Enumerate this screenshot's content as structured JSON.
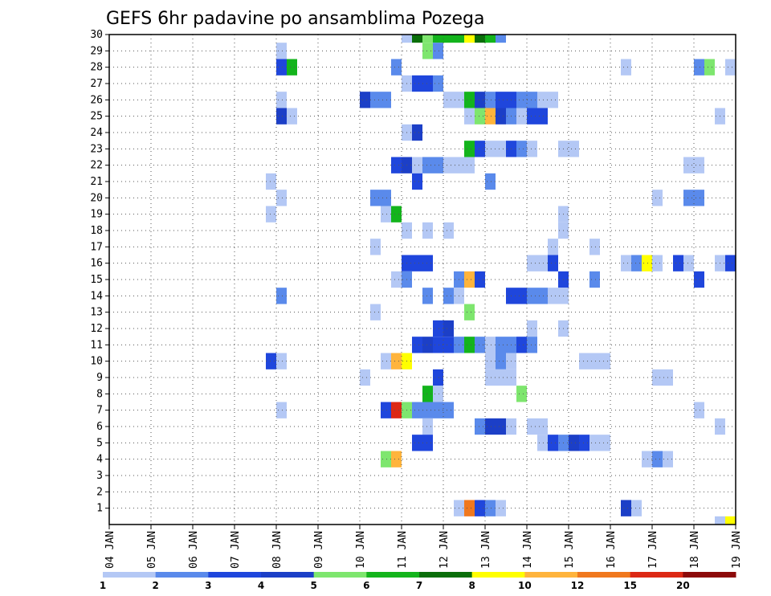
{
  "chart_data": {
    "type": "heatmap",
    "title": "GEFS 6hr padavine po ansamblima Pozega",
    "x_ticks": [
      "04 JAN",
      "05 JAN",
      "06 JAN",
      "07 JAN",
      "08 JAN",
      "09 JAN",
      "10 JAN",
      "11 JAN",
      "12 JAN",
      "13 JAN",
      "14 JAN",
      "15 JAN",
      "16 JAN",
      "17 JAN",
      "18 JAN",
      "19 JAN"
    ],
    "y_ticks": [
      "1",
      "2",
      "3",
      "4",
      "5",
      "6",
      "7",
      "8",
      "9",
      "10",
      "11",
      "12",
      "13",
      "14",
      "15",
      "16",
      "17",
      "18",
      "19",
      "20",
      "21",
      "22",
      "23",
      "24",
      "25",
      "26",
      "27",
      "28",
      "29",
      "30"
    ],
    "xlim": [
      "04 JAN 00Z",
      "19 JAN 00Z"
    ],
    "ylim": [
      0,
      30
    ],
    "grid": true,
    "colorbar": {
      "levels": [
        1,
        2,
        3,
        4,
        5,
        6,
        7,
        8,
        10,
        12,
        15,
        20
      ],
      "labels": [
        "1",
        "2",
        "3",
        "4",
        "5",
        "6",
        "7",
        "8",
        "10",
        "12",
        "15",
        "20"
      ],
      "colors": [
        "#b4c8f5",
        "#5a8aeb",
        "#1f46dc",
        "#1c3fc7",
        "#7ee66e",
        "#13b41c",
        "#0a6e0a",
        "#ffff00",
        "#ffb43c",
        "#f0781e",
        "#dc2814",
        "#8c0a0a"
      ]
    },
    "cells": [
      {
        "member": 30,
        "day": 11.0,
        "level": 1
      },
      {
        "member": 30,
        "day": 11.25,
        "level": 7
      },
      {
        "member": 30,
        "day": 11.5,
        "level": 5
      },
      {
        "member": 30,
        "day": 11.75,
        "level": 6
      },
      {
        "member": 30,
        "day": 12.0,
        "level": 6
      },
      {
        "member": 30,
        "day": 12.25,
        "level": 6
      },
      {
        "member": 30,
        "day": 12.5,
        "level": 8
      },
      {
        "member": 30,
        "day": 12.75,
        "level": 7
      },
      {
        "member": 30,
        "day": 13.0,
        "level": 6
      },
      {
        "member": 30,
        "day": 13.25,
        "level": 2
      },
      {
        "member": 29,
        "day": 8.0,
        "level": 1
      },
      {
        "member": 29,
        "day": 11.5,
        "level": 5
      },
      {
        "member": 29,
        "day": 11.75,
        "level": 2
      },
      {
        "member": 28,
        "day": 8.0,
        "level": 3
      },
      {
        "member": 28,
        "day": 8.25,
        "level": 6
      },
      {
        "member": 28,
        "day": 10.75,
        "level": 2
      },
      {
        "member": 28,
        "day": 16.25,
        "level": 1
      },
      {
        "member": 28,
        "day": 18.0,
        "level": 2
      },
      {
        "member": 28,
        "day": 18.25,
        "level": 5
      },
      {
        "member": 28,
        "day": 18.75,
        "level": 1
      },
      {
        "member": 27,
        "day": 11.0,
        "level": 1
      },
      {
        "member": 27,
        "day": 11.25,
        "level": 3
      },
      {
        "member": 27,
        "day": 11.5,
        "level": 3
      },
      {
        "member": 27,
        "day": 11.75,
        "level": 2
      },
      {
        "member": 26,
        "day": 8.0,
        "level": 1
      },
      {
        "member": 26,
        "day": 10.0,
        "level": 4
      },
      {
        "member": 26,
        "day": 10.25,
        "level": 2
      },
      {
        "member": 26,
        "day": 10.5,
        "level": 2
      },
      {
        "member": 26,
        "day": 12.0,
        "level": 1
      },
      {
        "member": 26,
        "day": 12.25,
        "level": 1
      },
      {
        "member": 26,
        "day": 12.5,
        "level": 6
      },
      {
        "member": 26,
        "day": 12.75,
        "level": 4
      },
      {
        "member": 26,
        "day": 13.0,
        "level": 2
      },
      {
        "member": 26,
        "day": 13.25,
        "level": 3
      },
      {
        "member": 26,
        "day": 13.5,
        "level": 3
      },
      {
        "member": 26,
        "day": 13.75,
        "level": 2
      },
      {
        "member": 26,
        "day": 14.0,
        "level": 2
      },
      {
        "member": 26,
        "day": 14.25,
        "level": 1
      },
      {
        "member": 26,
        "day": 14.5,
        "level": 1
      },
      {
        "member": 25,
        "day": 8.0,
        "level": 4
      },
      {
        "member": 25,
        "day": 8.25,
        "level": 1
      },
      {
        "member": 25,
        "day": 12.5,
        "level": 1
      },
      {
        "member": 25,
        "day": 12.75,
        "level": 5
      },
      {
        "member": 25,
        "day": 13.0,
        "level": 9
      },
      {
        "member": 25,
        "day": 13.25,
        "level": 4
      },
      {
        "member": 25,
        "day": 13.5,
        "level": 2
      },
      {
        "member": 25,
        "day": 13.75,
        "level": 1
      },
      {
        "member": 25,
        "day": 14.0,
        "level": 3
      },
      {
        "member": 25,
        "day": 14.25,
        "level": 3
      },
      {
        "member": 25,
        "day": 18.5,
        "level": 1
      },
      {
        "member": 24,
        "day": 11.0,
        "level": 1
      },
      {
        "member": 24,
        "day": 11.25,
        "level": 4
      },
      {
        "member": 23,
        "day": 12.5,
        "level": 6
      },
      {
        "member": 23,
        "day": 12.75,
        "level": 3
      },
      {
        "member": 23,
        "day": 13.0,
        "level": 1
      },
      {
        "member": 23,
        "day": 13.25,
        "level": 1
      },
      {
        "member": 23,
        "day": 13.5,
        "level": 3
      },
      {
        "member": 23,
        "day": 13.75,
        "level": 2
      },
      {
        "member": 23,
        "day": 14.0,
        "level": 1
      },
      {
        "member": 23,
        "day": 14.75,
        "level": 1
      },
      {
        "member": 23,
        "day": 15.0,
        "level": 1
      },
      {
        "member": 22,
        "day": 10.75,
        "level": 3
      },
      {
        "member": 22,
        "day": 11.0,
        "level": 4
      },
      {
        "member": 22,
        "day": 11.25,
        "level": 1
      },
      {
        "member": 22,
        "day": 11.5,
        "level": 2
      },
      {
        "member": 22,
        "day": 11.75,
        "level": 2
      },
      {
        "member": 22,
        "day": 12.0,
        "level": 1
      },
      {
        "member": 22,
        "day": 12.25,
        "level": 1
      },
      {
        "member": 22,
        "day": 12.5,
        "level": 1
      },
      {
        "member": 22,
        "day": 17.75,
        "level": 1
      },
      {
        "member": 22,
        "day": 18.0,
        "level": 1
      },
      {
        "member": 21,
        "day": 7.75,
        "level": 1
      },
      {
        "member": 21,
        "day": 11.25,
        "level": 3
      },
      {
        "member": 21,
        "day": 13.0,
        "level": 2
      },
      {
        "member": 20,
        "day": 8.0,
        "level": 1
      },
      {
        "member": 20,
        "day": 10.25,
        "level": 2
      },
      {
        "member": 20,
        "day": 10.5,
        "level": 2
      },
      {
        "member": 20,
        "day": 17.0,
        "level": 1
      },
      {
        "member": 20,
        "day": 17.75,
        "level": 2
      },
      {
        "member": 20,
        "day": 18.0,
        "level": 2
      },
      {
        "member": 19,
        "day": 7.75,
        "level": 1
      },
      {
        "member": 19,
        "day": 10.5,
        "level": 1
      },
      {
        "member": 19,
        "day": 10.75,
        "level": 6
      },
      {
        "member": 19,
        "day": 14.75,
        "level": 1
      },
      {
        "member": 18,
        "day": 11.0,
        "level": 1
      },
      {
        "member": 18,
        "day": 11.5,
        "level": 1
      },
      {
        "member": 18,
        "day": 12.0,
        "level": 1
      },
      {
        "member": 18,
        "day": 14.75,
        "level": 1
      },
      {
        "member": 17,
        "day": 10.25,
        "level": 1
      },
      {
        "member": 17,
        "day": 14.5,
        "level": 1
      },
      {
        "member": 17,
        "day": 15.5,
        "level": 1
      },
      {
        "member": 16,
        "day": 11.0,
        "level": 3
      },
      {
        "member": 16,
        "day": 11.25,
        "level": 3
      },
      {
        "member": 16,
        "day": 11.5,
        "level": 3
      },
      {
        "member": 16,
        "day": 14.0,
        "level": 1
      },
      {
        "member": 16,
        "day": 14.25,
        "level": 1
      },
      {
        "member": 16,
        "day": 14.5,
        "level": 3
      },
      {
        "member": 16,
        "day": 16.25,
        "level": 1
      },
      {
        "member": 16,
        "day": 16.5,
        "level": 2
      },
      {
        "member": 16,
        "day": 16.75,
        "level": 8
      },
      {
        "member": 16,
        "day": 17.0,
        "level": 1
      },
      {
        "member": 16,
        "day": 17.5,
        "level": 3
      },
      {
        "member": 16,
        "day": 17.75,
        "level": 1
      },
      {
        "member": 16,
        "day": 18.5,
        "level": 1
      },
      {
        "member": 16,
        "day": 18.75,
        "level": 3
      },
      {
        "member": 15,
        "day": 10.75,
        "level": 1
      },
      {
        "member": 15,
        "day": 11.0,
        "level": 2
      },
      {
        "member": 15,
        "day": 12.25,
        "level": 2
      },
      {
        "member": 15,
        "day": 12.5,
        "level": 9
      },
      {
        "member": 15,
        "day": 12.75,
        "level": 3
      },
      {
        "member": 15,
        "day": 14.75,
        "level": 3
      },
      {
        "member": 15,
        "day": 15.5,
        "level": 2
      },
      {
        "member": 15,
        "day": 18.0,
        "level": 3
      },
      {
        "member": 14,
        "day": 8.0,
        "level": 2
      },
      {
        "member": 14,
        "day": 11.5,
        "level": 2
      },
      {
        "member": 14,
        "day": 12.0,
        "level": 2
      },
      {
        "member": 14,
        "day": 12.25,
        "level": 1
      },
      {
        "member": 14,
        "day": 13.5,
        "level": 3
      },
      {
        "member": 14,
        "day": 13.75,
        "level": 3
      },
      {
        "member": 14,
        "day": 14.0,
        "level": 2
      },
      {
        "member": 14,
        "day": 14.25,
        "level": 2
      },
      {
        "member": 14,
        "day": 14.5,
        "level": 1
      },
      {
        "member": 14,
        "day": 14.75,
        "level": 1
      },
      {
        "member": 13,
        "day": 10.25,
        "level": 1
      },
      {
        "member": 13,
        "day": 12.5,
        "level": 5
      },
      {
        "member": 12,
        "day": 11.75,
        "level": 3
      },
      {
        "member": 12,
        "day": 12.0,
        "level": 4
      },
      {
        "member": 12,
        "day": 14.0,
        "level": 1
      },
      {
        "member": 12,
        "day": 14.75,
        "level": 1
      },
      {
        "member": 11,
        "day": 11.25,
        "level": 3
      },
      {
        "member": 11,
        "day": 11.5,
        "level": 4
      },
      {
        "member": 11,
        "day": 11.75,
        "level": 3
      },
      {
        "member": 11,
        "day": 12.0,
        "level": 3
      },
      {
        "member": 11,
        "day": 12.25,
        "level": 2
      },
      {
        "member": 11,
        "day": 12.5,
        "level": 6
      },
      {
        "member": 11,
        "day": 12.75,
        "level": 2
      },
      {
        "member": 11,
        "day": 13.0,
        "level": 1
      },
      {
        "member": 11,
        "day": 13.25,
        "level": 2
      },
      {
        "member": 11,
        "day": 13.5,
        "level": 2
      },
      {
        "member": 11,
        "day": 13.75,
        "level": 3
      },
      {
        "member": 11,
        "day": 14.0,
        "level": 2
      },
      {
        "member": 10,
        "day": 7.75,
        "level": 3
      },
      {
        "member": 10,
        "day": 8.0,
        "level": 1
      },
      {
        "member": 10,
        "day": 10.5,
        "level": 1
      },
      {
        "member": 10,
        "day": 10.75,
        "level": 9
      },
      {
        "member": 10,
        "day": 11.0,
        "level": 8
      },
      {
        "member": 10,
        "day": 13.0,
        "level": 1
      },
      {
        "member": 10,
        "day": 13.25,
        "level": 2
      },
      {
        "member": 10,
        "day": 13.5,
        "level": 1
      },
      {
        "member": 10,
        "day": 15.25,
        "level": 1
      },
      {
        "member": 10,
        "day": 15.5,
        "level": 1
      },
      {
        "member": 10,
        "day": 15.75,
        "level": 1
      },
      {
        "member": 9,
        "day": 10.0,
        "level": 1
      },
      {
        "member": 9,
        "day": 11.75,
        "level": 3
      },
      {
        "member": 9,
        "day": 13.0,
        "level": 1
      },
      {
        "member": 9,
        "day": 13.25,
        "level": 1
      },
      {
        "member": 9,
        "day": 13.5,
        "level": 1
      },
      {
        "member": 9,
        "day": 17.0,
        "level": 1
      },
      {
        "member": 9,
        "day": 17.25,
        "level": 1
      },
      {
        "member": 8,
        "day": 11.5,
        "level": 6
      },
      {
        "member": 8,
        "day": 11.75,
        "level": 1
      },
      {
        "member": 8,
        "day": 13.75,
        "level": 5
      },
      {
        "member": 7,
        "day": 8.0,
        "level": 1
      },
      {
        "member": 7,
        "day": 10.5,
        "level": 3
      },
      {
        "member": 7,
        "day": 10.75,
        "level": 11
      },
      {
        "member": 7,
        "day": 11.0,
        "level": 5
      },
      {
        "member": 7,
        "day": 11.25,
        "level": 2
      },
      {
        "member": 7,
        "day": 11.5,
        "level": 2
      },
      {
        "member": 7,
        "day": 11.75,
        "level": 2
      },
      {
        "member": 7,
        "day": 12.0,
        "level": 2
      },
      {
        "member": 7,
        "day": 18.0,
        "level": 1
      },
      {
        "member": 6,
        "day": 11.5,
        "level": 1
      },
      {
        "member": 6,
        "day": 12.75,
        "level": 2
      },
      {
        "member": 6,
        "day": 13.0,
        "level": 4
      },
      {
        "member": 6,
        "day": 13.25,
        "level": 4
      },
      {
        "member": 6,
        "day": 13.5,
        "level": 1
      },
      {
        "member": 6,
        "day": 14.0,
        "level": 1
      },
      {
        "member": 6,
        "day": 14.25,
        "level": 1
      },
      {
        "member": 6,
        "day": 18.5,
        "level": 1
      },
      {
        "member": 5,
        "day": 11.25,
        "level": 3
      },
      {
        "member": 5,
        "day": 11.5,
        "level": 3
      },
      {
        "member": 5,
        "day": 14.25,
        "level": 1
      },
      {
        "member": 5,
        "day": 14.5,
        "level": 3
      },
      {
        "member": 5,
        "day": 14.75,
        "level": 2
      },
      {
        "member": 5,
        "day": 15.0,
        "level": 4
      },
      {
        "member": 5,
        "day": 15.25,
        "level": 3
      },
      {
        "member": 5,
        "day": 15.5,
        "level": 1
      },
      {
        "member": 5,
        "day": 15.75,
        "level": 1
      },
      {
        "member": 4,
        "day": 10.5,
        "level": 5
      },
      {
        "member": 4,
        "day": 10.75,
        "level": 9
      },
      {
        "member": 4,
        "day": 16.75,
        "level": 1
      },
      {
        "member": 4,
        "day": 17.0,
        "level": 2
      },
      {
        "member": 4,
        "day": 17.25,
        "level": 1
      },
      {
        "member": 1,
        "day": 12.25,
        "level": 1
      },
      {
        "member": 1,
        "day": 12.5,
        "level": 10
      },
      {
        "member": 1,
        "day": 12.75,
        "level": 3
      },
      {
        "member": 1,
        "day": 13.0,
        "level": 2
      },
      {
        "member": 1,
        "day": 13.25,
        "level": 1
      },
      {
        "member": 1,
        "day": 16.25,
        "level": 4
      },
      {
        "member": 1,
        "day": 16.5,
        "level": 1
      },
      {
        "member": 0,
        "day": 18.5,
        "level": 1
      },
      {
        "member": 0,
        "day": 18.75,
        "level": 8
      }
    ]
  }
}
